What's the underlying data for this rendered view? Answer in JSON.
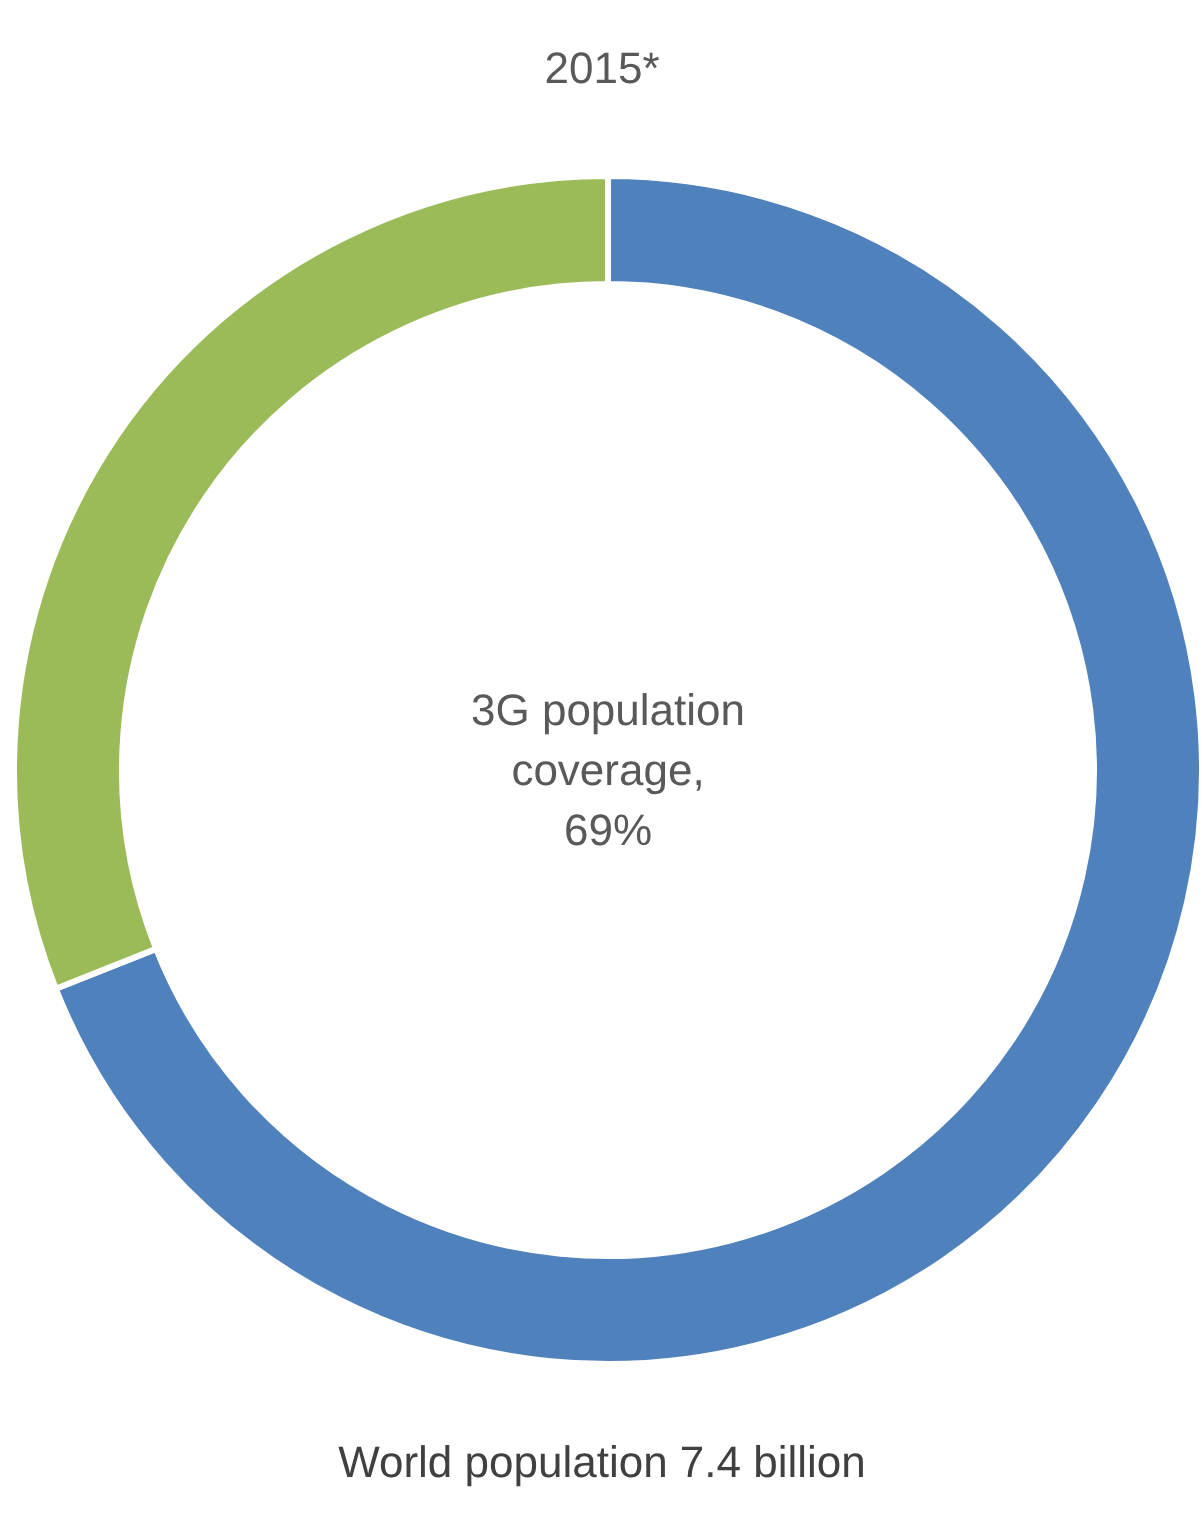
{
  "chart_data": {
    "type": "donut",
    "title": "2015*",
    "categories": [
      null,
      null
    ],
    "values": [
      69,
      31
    ],
    "colors": [
      "#4f81bd",
      "#9bbb59"
    ],
    "annotations": [
      "3G population coverage, 69%",
      "World population 7.4 billion"
    ]
  }
}
